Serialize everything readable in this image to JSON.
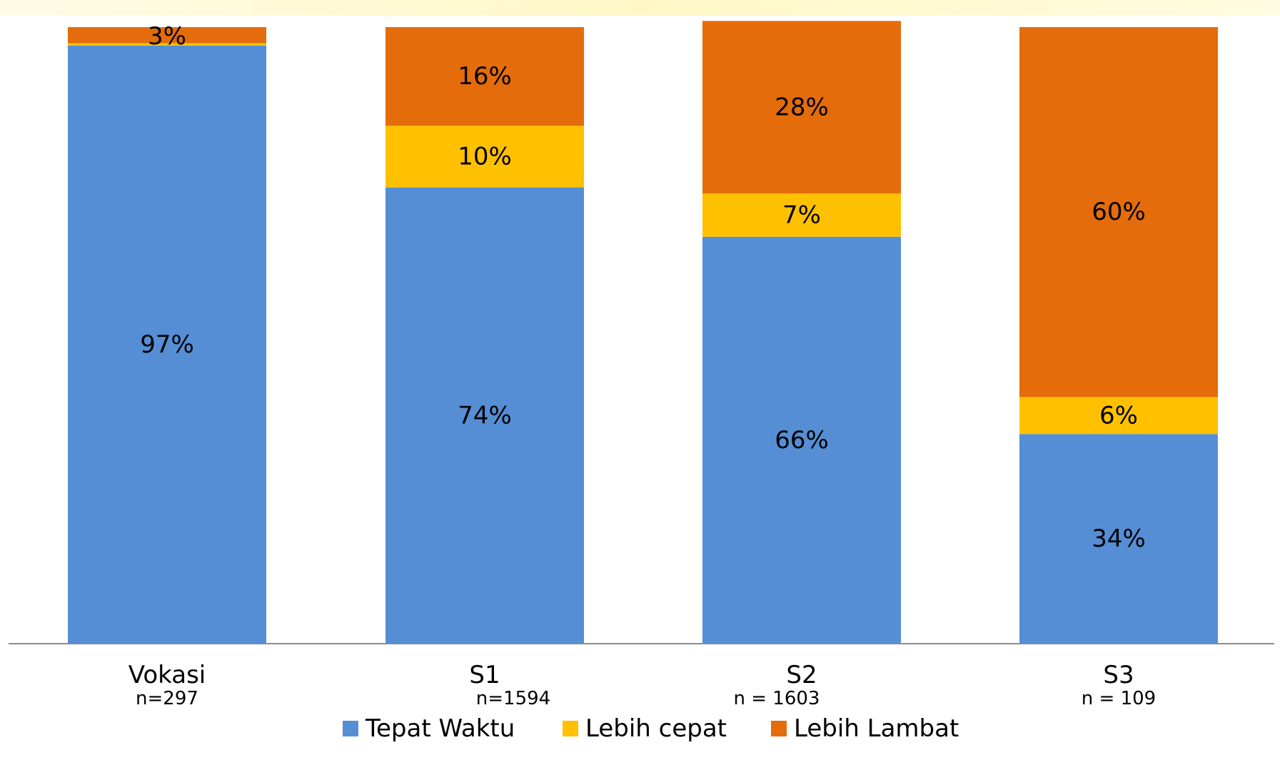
{
  "chart_data": {
    "type": "bar",
    "stacked": true,
    "orientation": "vertical",
    "categories": [
      "Vokasi",
      "S1",
      "S2",
      "S3"
    ],
    "category_n": [
      "n=297",
      "n=1594",
      "n = 1603",
      "n = 109"
    ],
    "series": [
      {
        "name": "Tepat Waktu",
        "color": "#558ed5",
        "values": [
          97,
          74,
          66,
          34
        ],
        "labels": [
          "97%",
          "74%",
          "66%",
          "34%"
        ]
      },
      {
        "name": "Lebih cepat",
        "color": "#ffc000",
        "values": [
          0.4,
          10,
          7,
          6
        ],
        "labels": [
          "",
          "10%",
          "7%",
          "6%"
        ]
      },
      {
        "name": "Lebih Lambat",
        "color": "#e46c0a",
        "values": [
          2.6,
          16,
          28,
          60
        ],
        "labels": [
          "3%",
          "16%",
          "28%",
          "60%"
        ]
      }
    ],
    "ylim": [
      0,
      100
    ],
    "title": "",
    "xlabel": "",
    "ylabel": "",
    "grid": false,
    "legend_position": "bottom"
  }
}
